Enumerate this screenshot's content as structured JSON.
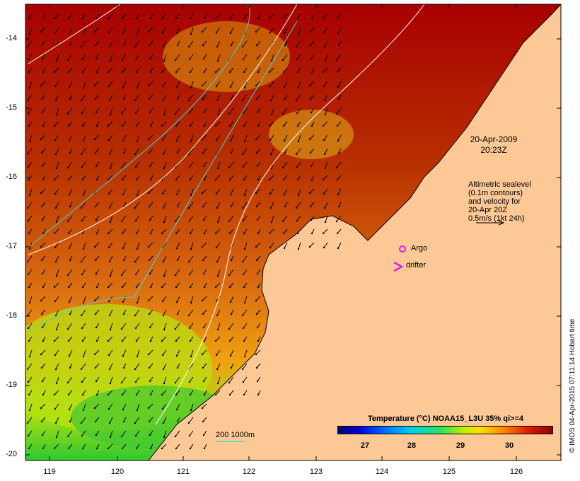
{
  "map": {
    "lat_ticks": [
      "-14",
      "-15",
      "-16",
      "-17",
      "-18",
      "-19",
      "-20"
    ],
    "lon_ticks": [
      "119",
      "120",
      "121",
      "122",
      "123",
      "124",
      "125",
      "126"
    ],
    "timestamp": {
      "date": "20-Apr-2009",
      "time": "20:23Z"
    },
    "altimetry_note": [
      "Altimetric sealevel",
      "(0.1m contours)",
      "and velocity for",
      "20-Apr 20Z",
      "0.5m/s (1kt 24h)"
    ],
    "argo_label": "Argo",
    "drifter_label": "drifter",
    "depth_legend": "200 1000m",
    "colorbar": {
      "title": "Temperature (°C) NOAA15_L3U 35% qi>=4",
      "ticks": [
        "27",
        "28",
        "29",
        "30"
      ]
    },
    "credit": "© IMOS 04-Apr-2015 07:11:14 Hobart time",
    "colors": {
      "land": "#fcc896",
      "hot": "#a80000",
      "warm": "#d06010",
      "cool": "#58d820",
      "contour": "#40d8d0"
    }
  }
}
